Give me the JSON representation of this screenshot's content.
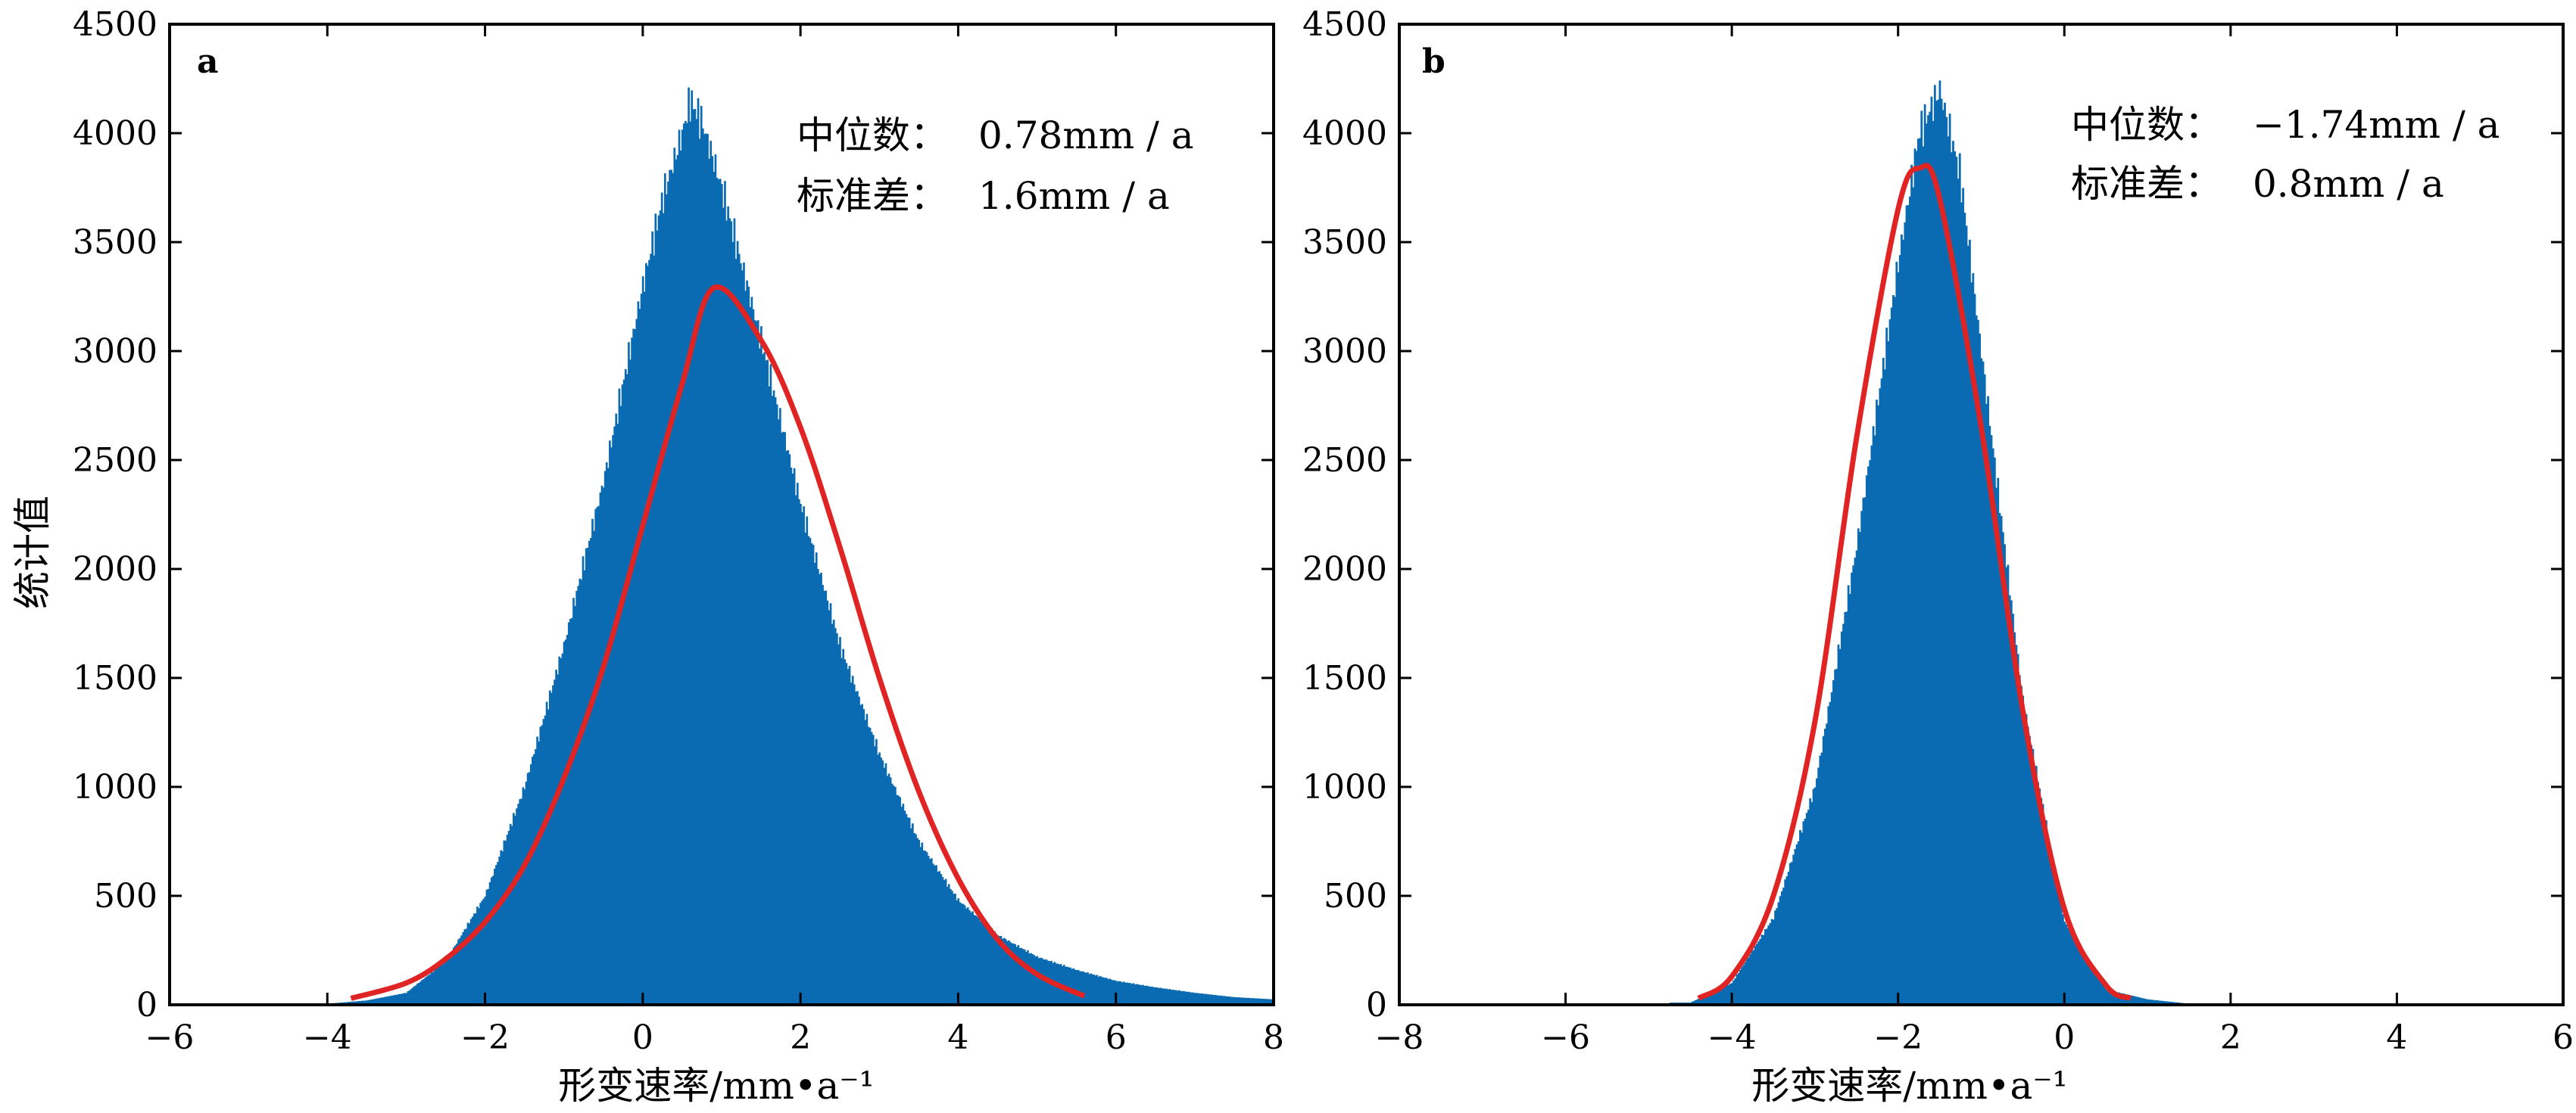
{
  "chart_data": [
    {
      "type": "bar",
      "panel_label": "a",
      "xlabel": "形变速率/mm•a⁻¹",
      "ylabel": "统计值",
      "xlim": [
        -6,
        8
      ],
      "ylim": [
        0,
        4500
      ],
      "x_ticks": [
        -6,
        -4,
        -2,
        0,
        2,
        4,
        6,
        8
      ],
      "y_ticks": [
        0,
        500,
        1000,
        1500,
        2000,
        2500,
        3000,
        3500,
        4000,
        4500
      ],
      "grid": false,
      "bar_color": "#0a6bb2",
      "fit_color": "#e02424",
      "annotations": [
        {
          "label": "中位数：",
          "value": "0.78mm / a"
        },
        {
          "label": "标准差：",
          "value": "1.6mm / a"
        }
      ],
      "histogram": {
        "x": [
          -4.0,
          -3.5,
          -3.0,
          -2.5,
          -2.0,
          -1.5,
          -1.0,
          -0.5,
          0.0,
          0.25,
          0.5,
          0.6,
          0.75,
          1.0,
          1.5,
          2.0,
          2.5,
          3.0,
          3.5,
          4.0,
          4.5,
          5.0,
          5.5,
          6.0,
          6.5,
          7.0,
          7.5,
          8.0
        ],
        "y": [
          5,
          20,
          55,
          200,
          500,
          1000,
          1650,
          2400,
          3300,
          3700,
          4000,
          4150,
          4050,
          3750,
          3050,
          2300,
          1650,
          1150,
          750,
          480,
          320,
          220,
          160,
          110,
          80,
          55,
          35,
          25
        ]
      },
      "fit": {
        "x": [
          -3.7,
          -3.0,
          -2.5,
          -2.0,
          -1.5,
          -1.0,
          -0.5,
          0.0,
          0.5,
          0.9,
          1.5,
          2.0,
          2.5,
          3.0,
          3.5,
          4.0,
          4.5,
          5.0,
          5.6
        ],
        "y": [
          30,
          100,
          210,
          380,
          640,
          1040,
          1550,
          2200,
          2850,
          3290,
          3050,
          2650,
          2100,
          1500,
          980,
          580,
          300,
          140,
          40
        ]
      }
    },
    {
      "type": "bar",
      "panel_label": "b",
      "xlabel": "形变速率/mm•a⁻¹",
      "ylabel": "",
      "xlim": [
        -8,
        6
      ],
      "ylim": [
        0,
        4500
      ],
      "x_ticks": [
        -8,
        -6,
        -4,
        -2,
        0,
        2,
        4,
        6
      ],
      "y_ticks": [
        0,
        500,
        1000,
        1500,
        2000,
        2500,
        3000,
        3500,
        4000,
        4500
      ],
      "grid": false,
      "bar_color": "#0a6bb2",
      "fit_color": "#e02424",
      "annotations": [
        {
          "label": "中位数：",
          "value": "−1.74mm / a"
        },
        {
          "label": "标准差：",
          "value": "0.8mm / a"
        }
      ],
      "histogram": {
        "x": [
          -4.5,
          -4.0,
          -3.5,
          -3.0,
          -2.5,
          -2.0,
          -1.75,
          -1.5,
          -1.25,
          -1.0,
          -0.5,
          0.0,
          0.5,
          1.0,
          1.5
        ],
        "y": [
          10,
          100,
          400,
          1000,
          2100,
          3400,
          4000,
          4200,
          3800,
          3000,
          1400,
          380,
          70,
          25,
          5
        ]
      },
      "fit": {
        "x": [
          -4.4,
          -4.0,
          -3.5,
          -3.0,
          -2.5,
          -2.0,
          -1.74,
          -1.5,
          -1.0,
          -0.5,
          0.0,
          0.5,
          0.8
        ],
        "y": [
          30,
          130,
          500,
          1300,
          2600,
          3650,
          3840,
          3700,
          2650,
          1350,
          440,
          90,
          30
        ]
      }
    }
  ]
}
